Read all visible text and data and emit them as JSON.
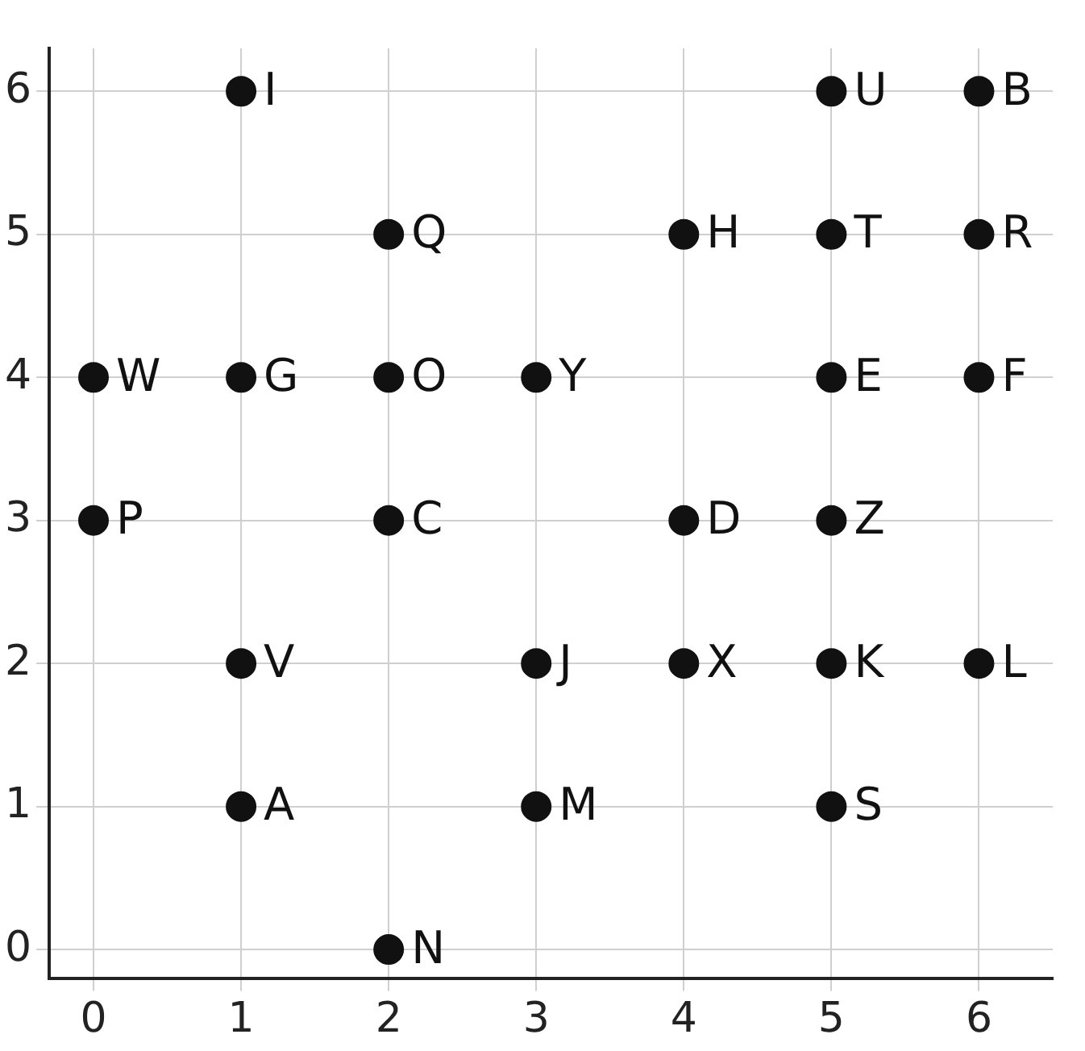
{
  "chart_data": {
    "type": "scatter",
    "x": [
      1,
      5,
      6,
      2,
      4,
      5,
      6,
      0,
      1,
      2,
      3,
      5,
      6,
      0,
      2,
      4,
      5,
      1,
      3,
      4,
      5,
      6,
      1,
      3,
      5,
      2
    ],
    "values": [
      6,
      6,
      6,
      5,
      5,
      5,
      5,
      4,
      4,
      4,
      4,
      4,
      4,
      3,
      3,
      3,
      3,
      2,
      2,
      2,
      2,
      2,
      1,
      1,
      1,
      0
    ],
    "value_labels": [
      "I",
      "U",
      "B",
      "Q",
      "H",
      "T",
      "R",
      "W",
      "G",
      "O",
      "Y",
      "E",
      "F",
      "P",
      "C",
      "D",
      "Z",
      "V",
      "J",
      "X",
      "K",
      "L",
      "A",
      "M",
      "S",
      "N"
    ],
    "color": "#111111",
    "marker": "circle",
    "xlim": [
      -0.3,
      6.5
    ],
    "ylim": [
      -0.2,
      6.3
    ],
    "xticks": [
      0,
      1,
      2,
      3,
      4,
      5,
      6
    ],
    "yticks": [
      0,
      1,
      2,
      3,
      4,
      5,
      6
    ],
    "grid": true,
    "legend": false
  }
}
